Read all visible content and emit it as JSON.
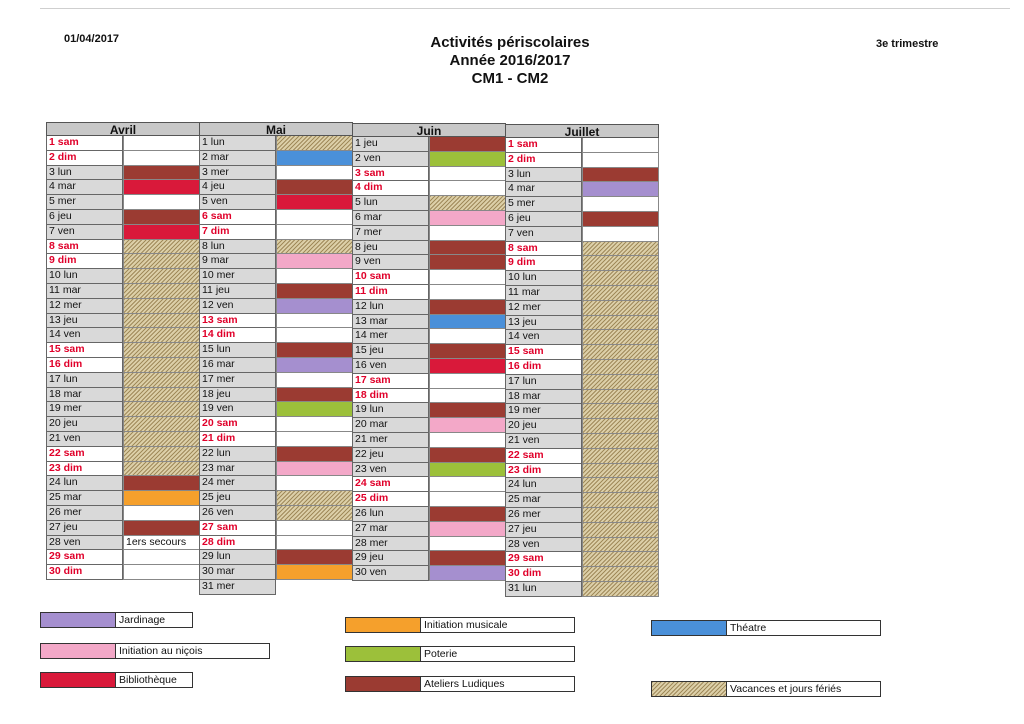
{
  "header": {
    "date": "01/04/2017",
    "title_line1": "Activités périscolaires",
    "title_line2": "Année 2016/2017",
    "title_line3": "CM1 - CM2",
    "term": "3e trimestre"
  },
  "colors": {
    "jardinage": "#a58fcf",
    "musique": "#f5a02c",
    "theatre": "#4a90d9",
    "nicois": "#f3a8c8",
    "poterie": "#9cc03a",
    "bibliotheque": "#d9193a",
    "ateliers": "#9b3b32",
    "vacances": "hatch"
  },
  "months": [
    {
      "name": "Avril",
      "days": [
        {
          "label": "1 sam",
          "weekend": true,
          "act": ""
        },
        {
          "label": "2 dim",
          "weekend": true,
          "act": ""
        },
        {
          "label": "3 lun",
          "weekend": false,
          "act": "ateliers"
        },
        {
          "label": "4 mar",
          "weekend": false,
          "act": "bibliotheque"
        },
        {
          "label": "5 mer",
          "weekend": false,
          "act": ""
        },
        {
          "label": "6 jeu",
          "weekend": false,
          "act": "ateliers"
        },
        {
          "label": "7 ven",
          "weekend": false,
          "act": "bibliotheque"
        },
        {
          "label": "8 sam",
          "weekend": true,
          "act": "vacances"
        },
        {
          "label": "9 dim",
          "weekend": true,
          "act": "vacances"
        },
        {
          "label": "10 lun",
          "weekend": false,
          "act": "vacances"
        },
        {
          "label": "11 mar",
          "weekend": false,
          "act": "vacances"
        },
        {
          "label": "12 mer",
          "weekend": false,
          "act": "vacances"
        },
        {
          "label": "13 jeu",
          "weekend": false,
          "act": "vacances"
        },
        {
          "label": "14 ven",
          "weekend": false,
          "act": "vacances"
        },
        {
          "label": "15 sam",
          "weekend": true,
          "act": "vacances"
        },
        {
          "label": "16 dim",
          "weekend": true,
          "act": "vacances"
        },
        {
          "label": "17 lun",
          "weekend": false,
          "act": "vacances"
        },
        {
          "label": "18 mar",
          "weekend": false,
          "act": "vacances"
        },
        {
          "label": "19 mer",
          "weekend": false,
          "act": "vacances"
        },
        {
          "label": "20 jeu",
          "weekend": false,
          "act": "vacances"
        },
        {
          "label": "21 ven",
          "weekend": false,
          "act": "vacances"
        },
        {
          "label": "22 sam",
          "weekend": true,
          "act": "vacances"
        },
        {
          "label": "23 dim",
          "weekend": true,
          "act": "vacances"
        },
        {
          "label": "24 lun",
          "weekend": false,
          "act": "ateliers"
        },
        {
          "label": "25 mar",
          "weekend": false,
          "act": "musique"
        },
        {
          "label": "26 mer",
          "weekend": false,
          "act": ""
        },
        {
          "label": "27 jeu",
          "weekend": false,
          "act": "ateliers"
        },
        {
          "label": "28 ven",
          "weekend": false,
          "act": "text",
          "text": "1ers secours"
        },
        {
          "label": "29 sam",
          "weekend": true,
          "act": ""
        },
        {
          "label": "30 dim",
          "weekend": true,
          "act": ""
        }
      ]
    },
    {
      "name": "Mai",
      "days": [
        {
          "label": "1 lun",
          "weekend": false,
          "act": "vacances"
        },
        {
          "label": "2 mar",
          "weekend": false,
          "act": "theatre"
        },
        {
          "label": "3 mer",
          "weekend": false,
          "act": ""
        },
        {
          "label": "4 jeu",
          "weekend": false,
          "act": "ateliers"
        },
        {
          "label": "5 ven",
          "weekend": false,
          "act": "bibliotheque"
        },
        {
          "label": "6 sam",
          "weekend": true,
          "act": ""
        },
        {
          "label": "7 dim",
          "weekend": true,
          "act": ""
        },
        {
          "label": "8 lun",
          "weekend": false,
          "act": "vacances"
        },
        {
          "label": "9 mar",
          "weekend": false,
          "act": "nicois"
        },
        {
          "label": "10 mer",
          "weekend": false,
          "act": ""
        },
        {
          "label": "11 jeu",
          "weekend": false,
          "act": "ateliers"
        },
        {
          "label": "12 ven",
          "weekend": false,
          "act": "jardinage"
        },
        {
          "label": "13 sam",
          "weekend": true,
          "act": ""
        },
        {
          "label": "14 dim",
          "weekend": true,
          "act": ""
        },
        {
          "label": "15 lun",
          "weekend": false,
          "act": "ateliers"
        },
        {
          "label": "16 mar",
          "weekend": false,
          "act": "jardinage"
        },
        {
          "label": "17 mer",
          "weekend": false,
          "act": ""
        },
        {
          "label": "18 jeu",
          "weekend": false,
          "act": "ateliers"
        },
        {
          "label": "19 ven",
          "weekend": false,
          "act": "poterie"
        },
        {
          "label": "20 sam",
          "weekend": true,
          "act": ""
        },
        {
          "label": "21 dim",
          "weekend": true,
          "act": ""
        },
        {
          "label": "22 lun",
          "weekend": false,
          "act": "ateliers"
        },
        {
          "label": "23 mar",
          "weekend": false,
          "act": "nicois"
        },
        {
          "label": "24 mer",
          "weekend": false,
          "act": ""
        },
        {
          "label": "25 jeu",
          "weekend": false,
          "act": "vacances"
        },
        {
          "label": "26 ven",
          "weekend": false,
          "act": "vacances"
        },
        {
          "label": "27 sam",
          "weekend": true,
          "act": ""
        },
        {
          "label": "28 dim",
          "weekend": true,
          "act": ""
        },
        {
          "label": "29 lun",
          "weekend": false,
          "act": "ateliers"
        },
        {
          "label": "30 mar",
          "weekend": false,
          "act": "musique"
        },
        {
          "label": "31 mer",
          "weekend": false,
          "act": "none"
        }
      ]
    },
    {
      "name": "Juin",
      "days": [
        {
          "label": "1 jeu",
          "weekend": false,
          "act": "ateliers"
        },
        {
          "label": "2 ven",
          "weekend": false,
          "act": "poterie"
        },
        {
          "label": "3 sam",
          "weekend": true,
          "act": ""
        },
        {
          "label": "4 dim",
          "weekend": true,
          "act": ""
        },
        {
          "label": "5 lun",
          "weekend": false,
          "act": "vacances"
        },
        {
          "label": "6 mar",
          "weekend": false,
          "act": "nicois"
        },
        {
          "label": "7 mer",
          "weekend": false,
          "act": ""
        },
        {
          "label": "8 jeu",
          "weekend": false,
          "act": "ateliers"
        },
        {
          "label": "9 ven",
          "weekend": false,
          "act": "ateliers"
        },
        {
          "label": "10 sam",
          "weekend": true,
          "act": ""
        },
        {
          "label": "11 dim",
          "weekend": true,
          "act": ""
        },
        {
          "label": "12 lun",
          "weekend": false,
          "act": "ateliers"
        },
        {
          "label": "13 mar",
          "weekend": false,
          "act": "theatre"
        },
        {
          "label": "14 mer",
          "weekend": false,
          "act": ""
        },
        {
          "label": "15 jeu",
          "weekend": false,
          "act": "ateliers"
        },
        {
          "label": "16 ven",
          "weekend": false,
          "act": "bibliotheque"
        },
        {
          "label": "17 sam",
          "weekend": true,
          "act": ""
        },
        {
          "label": "18 dim",
          "weekend": true,
          "act": ""
        },
        {
          "label": "19 lun",
          "weekend": false,
          "act": "ateliers"
        },
        {
          "label": "20 mar",
          "weekend": false,
          "act": "nicois"
        },
        {
          "label": "21 mer",
          "weekend": false,
          "act": ""
        },
        {
          "label": "22 jeu",
          "weekend": false,
          "act": "ateliers"
        },
        {
          "label": "23 ven",
          "weekend": false,
          "act": "poterie"
        },
        {
          "label": "24 sam",
          "weekend": true,
          "act": ""
        },
        {
          "label": "25 dim",
          "weekend": true,
          "act": ""
        },
        {
          "label": "26 lun",
          "weekend": false,
          "act": "ateliers"
        },
        {
          "label": "27 mar",
          "weekend": false,
          "act": "nicois"
        },
        {
          "label": "28 mer",
          "weekend": false,
          "act": ""
        },
        {
          "label": "29 jeu",
          "weekend": false,
          "act": "ateliers"
        },
        {
          "label": "30 ven",
          "weekend": false,
          "act": "jardinage"
        }
      ]
    },
    {
      "name": "Juillet",
      "days": [
        {
          "label": "1 sam",
          "weekend": true,
          "act": ""
        },
        {
          "label": "2 dim",
          "weekend": true,
          "act": ""
        },
        {
          "label": "3 lun",
          "weekend": false,
          "act": "ateliers"
        },
        {
          "label": "4 mar",
          "weekend": false,
          "act": "jardinage"
        },
        {
          "label": "5 mer",
          "weekend": false,
          "act": ""
        },
        {
          "label": "6 jeu",
          "weekend": false,
          "act": "ateliers"
        },
        {
          "label": "7 ven",
          "weekend": false,
          "act": ""
        },
        {
          "label": "8 sam",
          "weekend": true,
          "act": "vacances"
        },
        {
          "label": "9 dim",
          "weekend": true,
          "act": "vacances"
        },
        {
          "label": "10 lun",
          "weekend": false,
          "act": "vacances"
        },
        {
          "label": "11 mar",
          "weekend": false,
          "act": "vacances"
        },
        {
          "label": "12 mer",
          "weekend": false,
          "act": "vacances"
        },
        {
          "label": "13 jeu",
          "weekend": false,
          "act": "vacances"
        },
        {
          "label": "14 ven",
          "weekend": false,
          "act": "vacances"
        },
        {
          "label": "15 sam",
          "weekend": true,
          "act": "vacances"
        },
        {
          "label": "16 dim",
          "weekend": true,
          "act": "vacances"
        },
        {
          "label": "17 lun",
          "weekend": false,
          "act": "vacances"
        },
        {
          "label": "18 mar",
          "weekend": false,
          "act": "vacances"
        },
        {
          "label": "19 mer",
          "weekend": false,
          "act": "vacances"
        },
        {
          "label": "20 jeu",
          "weekend": false,
          "act": "vacances"
        },
        {
          "label": "21 ven",
          "weekend": false,
          "act": "vacances"
        },
        {
          "label": "22 sam",
          "weekend": true,
          "act": "vacances"
        },
        {
          "label": "23 dim",
          "weekend": true,
          "act": "vacances"
        },
        {
          "label": "24 lun",
          "weekend": false,
          "act": "vacances"
        },
        {
          "label": "25 mar",
          "weekend": false,
          "act": "vacances"
        },
        {
          "label": "26 mer",
          "weekend": false,
          "act": "vacances"
        },
        {
          "label": "27 jeu",
          "weekend": false,
          "act": "vacances"
        },
        {
          "label": "28 ven",
          "weekend": false,
          "act": "vacances"
        },
        {
          "label": "29 sam",
          "weekend": true,
          "act": "vacances"
        },
        {
          "label": "30 dim",
          "weekend": true,
          "act": "vacances"
        },
        {
          "label": "31 lun",
          "weekend": false,
          "act": "vacances"
        }
      ]
    }
  ],
  "legend": {
    "jardinage": "Jardinage",
    "musique": "Initiation musicale",
    "theatre": "Théatre",
    "nicois": "Initiation au niçois",
    "poterie": "Poterie",
    "bibliotheque": "Bibliothèque",
    "ateliers": "Ateliers Ludiques",
    "vacances": "Vacances et jours fériés"
  }
}
